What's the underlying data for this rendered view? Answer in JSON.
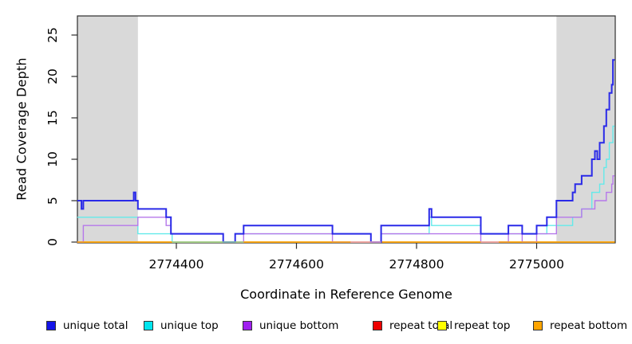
{
  "chart_data": {
    "type": "line",
    "subtype": "step-after-coverage",
    "title": "",
    "xlabel": "Coordinate in Reference Genome",
    "ylabel": "Read Coverage Depth",
    "xlim": [
      2774235,
      2775130
    ],
    "ylim": [
      0,
      27.3
    ],
    "grid": false,
    "x_ticks": [
      2774400,
      2774600,
      2774800,
      2775000
    ],
    "x_tick_labels": [
      "2774400",
      "2774600",
      "2774800",
      "2775000"
    ],
    "y_ticks": [
      0,
      5,
      10,
      15,
      20,
      25
    ],
    "y_tick_labels": [
      "0",
      "5",
      "10",
      "15",
      "20",
      "25"
    ],
    "shaded_regions": [
      {
        "name": "left-shaded-region",
        "from": 2774235,
        "to": 2774336,
        "color": "#d9d9d9"
      },
      {
        "name": "right-shaded-region",
        "from": 2775033,
        "to": 2775130,
        "color": "#d9d9d9"
      }
    ],
    "series": [
      {
        "name": "repeat total",
        "color": "#ee0000",
        "line_width": 1.4,
        "points": [
          [
            2774235,
            0
          ]
        ]
      },
      {
        "name": "repeat top",
        "color": "#ffff00",
        "line_width": 1.4,
        "points": [
          [
            2774235,
            0
          ]
        ]
      },
      {
        "name": "unique top",
        "color": "#63eaea",
        "line_width": 1.4,
        "points": [
          [
            2774235,
            3
          ],
          [
            2774336,
            1
          ],
          [
            2774393,
            0
          ],
          [
            2774498,
            1
          ],
          [
            2774724,
            0
          ],
          [
            2774741,
            1
          ],
          [
            2774821,
            3
          ],
          [
            2774825,
            2
          ],
          [
            2774907,
            1
          ],
          [
            2775017,
            2
          ],
          [
            2775060,
            3
          ],
          [
            2775075,
            4
          ],
          [
            2775092,
            6
          ],
          [
            2775105,
            7
          ],
          [
            2775112,
            9
          ],
          [
            2775116,
            10
          ],
          [
            2775121,
            12
          ],
          [
            2775127,
            14
          ]
        ]
      },
      {
        "name": "unique bottom",
        "color": "#b678ea",
        "line_width": 1.4,
        "points": [
          [
            2774235,
            0
          ],
          [
            2774245,
            2
          ],
          [
            2774336,
            3
          ],
          [
            2774383,
            2
          ],
          [
            2774391,
            1
          ],
          [
            2774478,
            0
          ],
          [
            2774512,
            1
          ],
          [
            2774660,
            0
          ],
          [
            2774741,
            1
          ],
          [
            2774907,
            0
          ],
          [
            2774953,
            1
          ],
          [
            2774976,
            0
          ],
          [
            2775000,
            1
          ],
          [
            2775033,
            3
          ],
          [
            2775075,
            4
          ],
          [
            2775097,
            5
          ],
          [
            2775116,
            6
          ],
          [
            2775125,
            7
          ],
          [
            2775127,
            8
          ]
        ]
      },
      {
        "name": "repeat bottom",
        "color": "#ffa510",
        "line_width": 1.5,
        "points": [
          [
            2774235,
            0
          ]
        ]
      },
      {
        "name": "unique total",
        "color": "#2a2ae8",
        "line_width": 2,
        "points": [
          [
            2774235,
            5
          ],
          [
            2774242,
            4
          ],
          [
            2774245,
            5
          ],
          [
            2774329,
            6
          ],
          [
            2774332,
            5
          ],
          [
            2774336,
            4
          ],
          [
            2774383,
            3
          ],
          [
            2774391,
            1
          ],
          [
            2774478,
            0
          ],
          [
            2774498,
            1
          ],
          [
            2774512,
            2
          ],
          [
            2774660,
            1
          ],
          [
            2774724,
            0
          ],
          [
            2774741,
            2
          ],
          [
            2774821,
            4
          ],
          [
            2774825,
            3
          ],
          [
            2774907,
            1
          ],
          [
            2774953,
            2
          ],
          [
            2774976,
            1
          ],
          [
            2775000,
            2
          ],
          [
            2775017,
            3
          ],
          [
            2775033,
            5
          ],
          [
            2775060,
            6
          ],
          [
            2775064,
            7
          ],
          [
            2775075,
            8
          ],
          [
            2775092,
            10
          ],
          [
            2775097,
            11
          ],
          [
            2775101,
            10
          ],
          [
            2775105,
            12
          ],
          [
            2775112,
            14
          ],
          [
            2775116,
            16
          ],
          [
            2775121,
            18
          ],
          [
            2775125,
            19
          ],
          [
            2775127,
            22
          ]
        ]
      }
    ],
    "zero_line_overlap_segments": [
      {
        "from": 2774393,
        "to": 2774512,
        "color": "#96d69c"
      },
      {
        "from": 2774690,
        "to": 2774741,
        "color": "#f0a8bc"
      },
      {
        "from": 2774907,
        "to": 2774937,
        "color": "#f0a8bc"
      }
    ],
    "legend_position": "bottom"
  },
  "legend": {
    "items": [
      {
        "label": "unique total",
        "color": "#1414e8"
      },
      {
        "label": "unique top",
        "color": "#00e5ee"
      },
      {
        "label": "unique bottom",
        "color": "#a020f0"
      },
      {
        "label": "repeat total",
        "color": "#ee0000"
      },
      {
        "label": "repeat top",
        "color": "#ffff00"
      },
      {
        "label": "repeat bottom",
        "color": "#ffa500"
      }
    ]
  },
  "axes": {
    "x_title": "Coordinate in Reference Genome",
    "y_title": "Read Coverage Depth"
  }
}
